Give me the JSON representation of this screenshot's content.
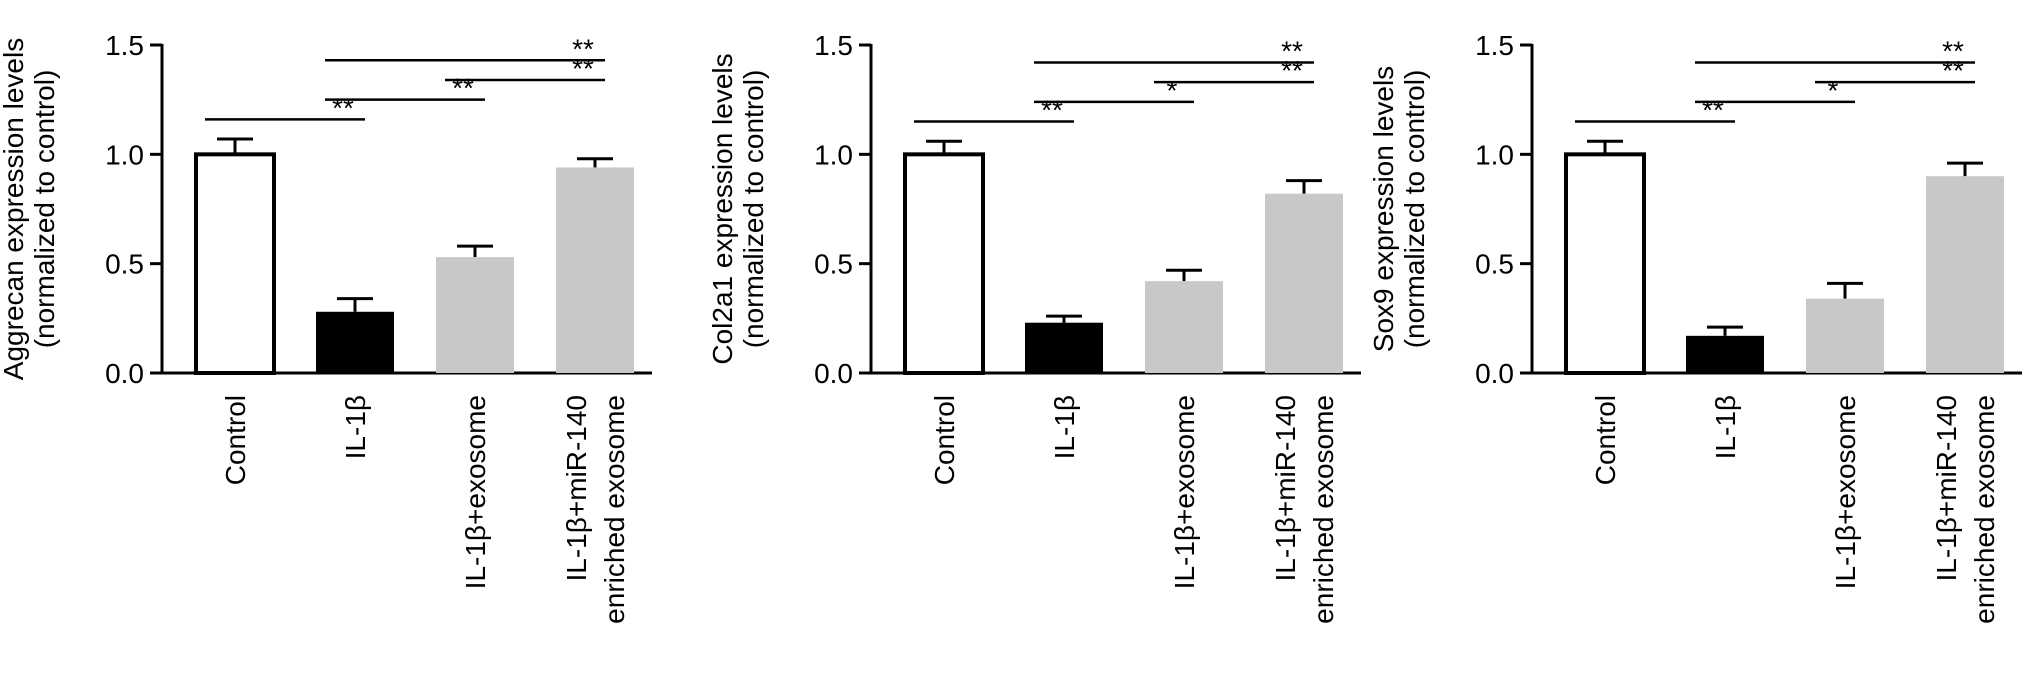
{
  "chart_data": [
    {
      "type": "bar",
      "ylabel": [
        "Aggrecan expression levels",
        "(normalized to control)"
      ],
      "categories": [
        "Control",
        "IL-1β",
        "IL-1β+exosome",
        [
          "IL-1β+miR-140",
          "enriched exosome"
        ]
      ],
      "values": [
        1.0,
        0.28,
        0.53,
        0.94
      ],
      "errors": [
        0.07,
        0.06,
        0.05,
        0.04
      ],
      "colors": [
        "#ffffff",
        "#000000",
        "#c8c8c8",
        "#c8c8c8"
      ],
      "ylim": [
        0,
        1.5
      ],
      "yticks": [
        {
          "value": 0,
          "label": "0.0"
        },
        0.5,
        {
          "value": 1,
          "label": "1.0"
        },
        1.5
      ],
      "significance": [
        {
          "pair": [
            0,
            1
          ],
          "label": "**"
        },
        {
          "pair": [
            1,
            2
          ],
          "label": "**"
        },
        {
          "pair": [
            2,
            3
          ],
          "label": "**"
        },
        {
          "pair": [
            1,
            3
          ],
          "label": "**"
        }
      ]
    },
    {
      "type": "bar",
      "ylabel": [
        "Col2a1 expression levels",
        "(normalized to control)"
      ],
      "categories": [
        "Control",
        "IL-1β",
        "IL-1β+exosome",
        [
          "IL-1β+miR-140",
          "enriched exosome"
        ]
      ],
      "values": [
        1.0,
        0.23,
        0.42,
        0.82
      ],
      "errors": [
        0.06,
        0.03,
        0.05,
        0.06
      ],
      "colors": [
        "#ffffff",
        "#000000",
        "#c8c8c8",
        "#c8c8c8"
      ],
      "ylim": [
        0,
        1.5
      ],
      "yticks": [
        {
          "value": 0,
          "label": "0.0"
        },
        0.5,
        {
          "value": 1,
          "label": "1.0"
        },
        1.5
      ],
      "significance": [
        {
          "pair": [
            0,
            1
          ],
          "label": "**"
        },
        {
          "pair": [
            1,
            2
          ],
          "label": "*"
        },
        {
          "pair": [
            2,
            3
          ],
          "label": "**"
        },
        {
          "pair": [
            1,
            3
          ],
          "label": "**"
        }
      ]
    },
    {
      "type": "bar",
      "ylabel": [
        "Sox9 expression levels",
        "(normalized to control)"
      ],
      "categories": [
        "Control",
        "IL-1β",
        "IL-1β+exosome",
        [
          "IL-1β+miR-140",
          "enriched exosome"
        ]
      ],
      "values": [
        1.0,
        0.17,
        0.34,
        0.9
      ],
      "errors": [
        0.06,
        0.04,
        0.07,
        0.06
      ],
      "colors": [
        "#ffffff",
        "#000000",
        "#c8c8c8",
        "#c8c8c8"
      ],
      "ylim": [
        0,
        1.5
      ],
      "yticks": [
        {
          "value": 0,
          "label": "0.0"
        },
        0.5,
        {
          "value": 1,
          "label": "1.0"
        },
        1.5
      ],
      "significance": [
        {
          "pair": [
            0,
            1
          ],
          "label": "**"
        },
        {
          "pair": [
            1,
            2
          ],
          "label": "*"
        },
        {
          "pair": [
            2,
            3
          ],
          "label": "**"
        },
        {
          "pair": [
            1,
            3
          ],
          "label": "**"
        }
      ]
    }
  ]
}
